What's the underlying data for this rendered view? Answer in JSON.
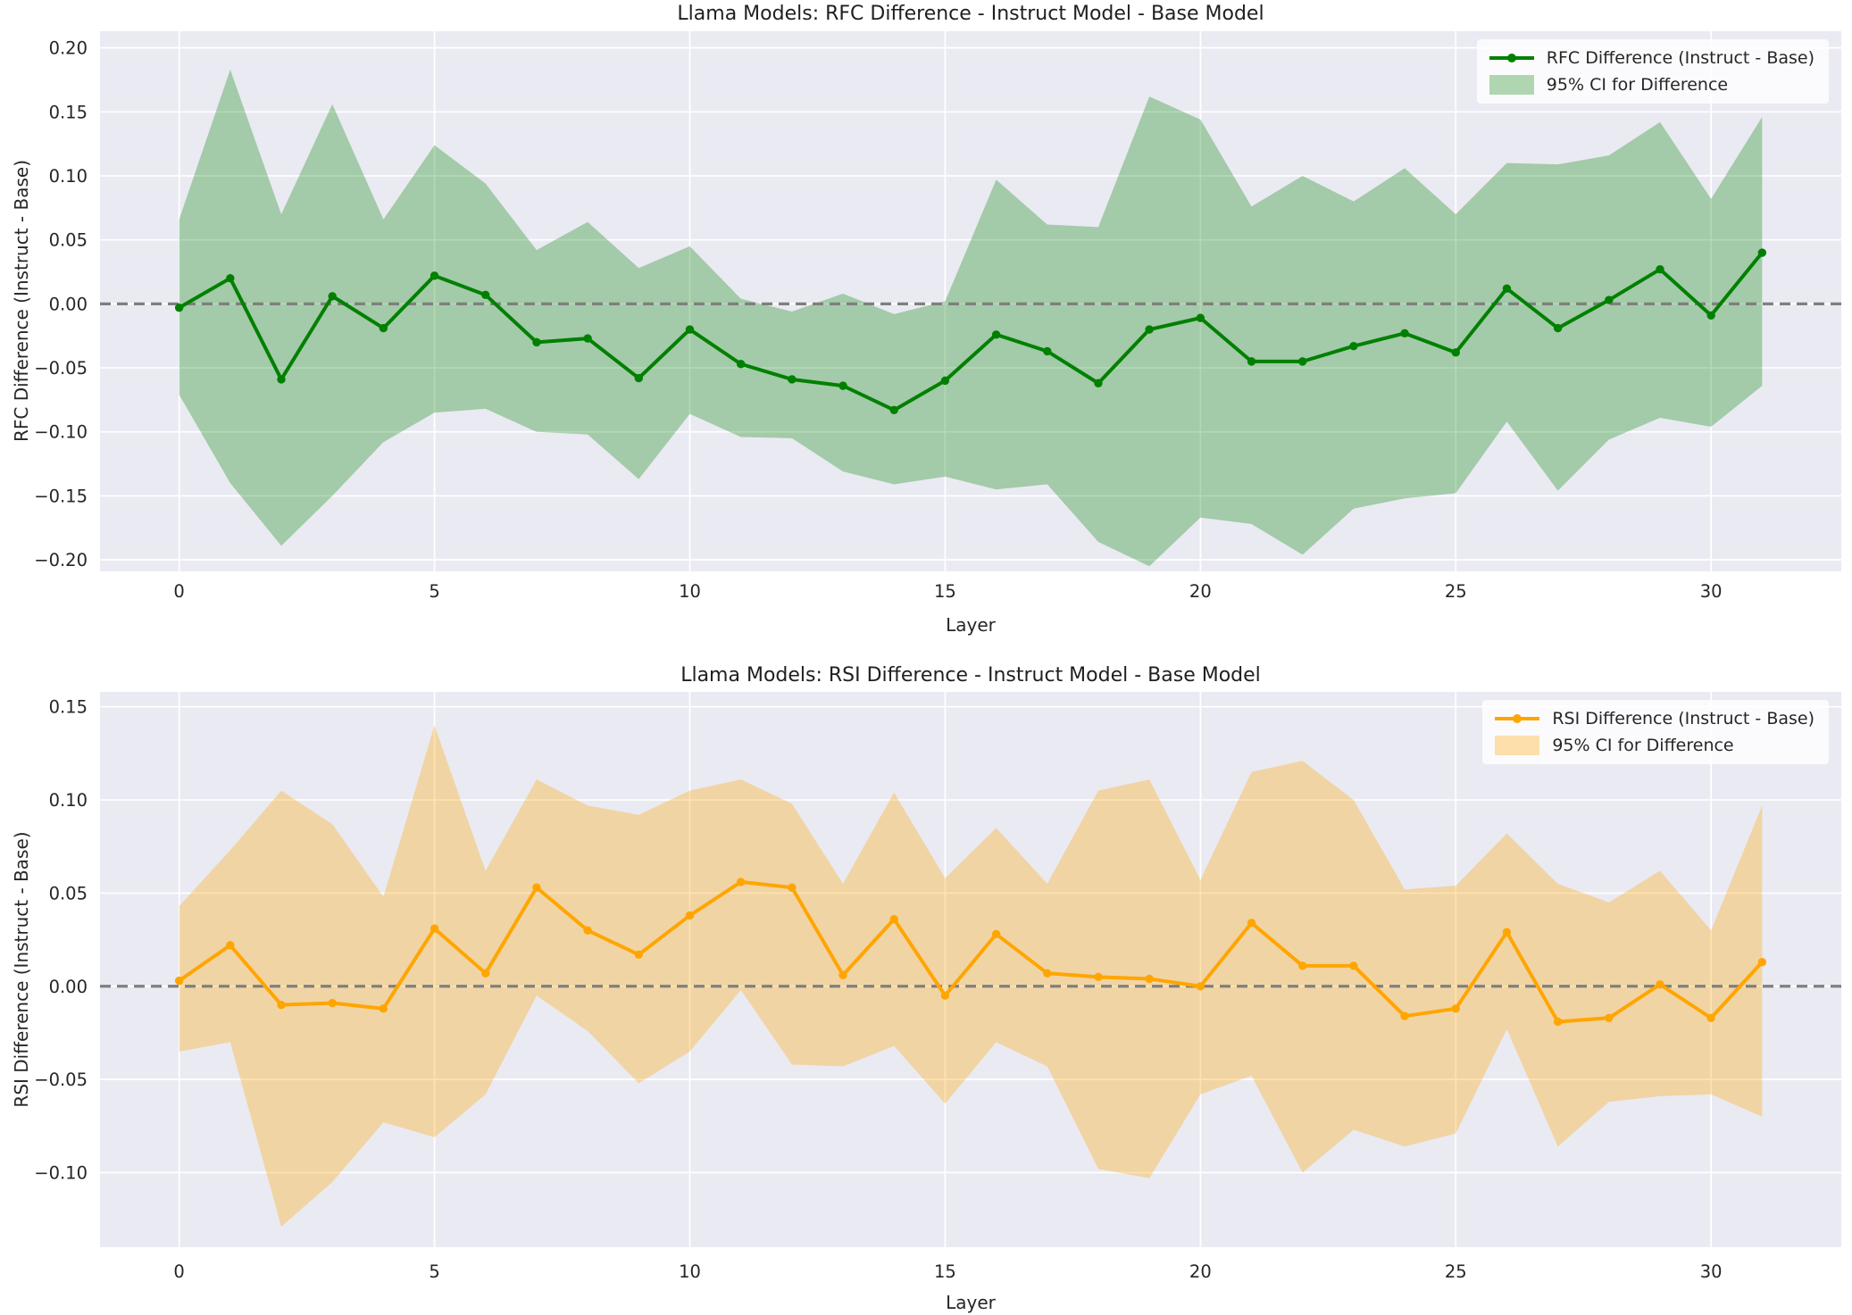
{
  "page_background": "#ffffff",
  "chart_data": [
    {
      "type": "line",
      "title": "Llama Models: RFC Difference - Instruct Model - Base Model",
      "xlabel": "Layer",
      "ylabel": "RFC Difference (Instruct - Base)",
      "legend": [
        "RFC Difference (Instruct - Base)",
        "95% CI for Difference"
      ],
      "legend_position": "upper right",
      "grid": true,
      "plot_bg": "#eaeaf2",
      "grid_color": "#ffffff",
      "line_color": "#008000",
      "band_color": "rgba(0,128,0,0.30)",
      "zero_line_color": "#7f7f7f",
      "xlim": [
        -1.55,
        32.55
      ],
      "ylim": [
        -0.209,
        0.213
      ],
      "xticks": [
        0,
        5,
        10,
        15,
        20,
        25,
        30
      ],
      "yticks": [
        0.2,
        0.15,
        0.1,
        0.05,
        0.0,
        -0.05,
        -0.1,
        -0.15,
        -0.2
      ],
      "x": [
        0,
        1,
        2,
        3,
        4,
        5,
        6,
        7,
        8,
        9,
        10,
        11,
        12,
        13,
        14,
        15,
        16,
        17,
        18,
        19,
        20,
        21,
        22,
        23,
        24,
        25,
        26,
        27,
        28,
        29,
        30,
        31
      ],
      "y": [
        -0.003,
        0.02,
        -0.059,
        0.006,
        -0.019,
        0.022,
        0.007,
        -0.03,
        -0.027,
        -0.058,
        -0.02,
        -0.047,
        -0.059,
        -0.064,
        -0.083,
        -0.06,
        -0.024,
        -0.037,
        -0.062,
        -0.02,
        -0.011,
        -0.045,
        -0.045,
        -0.033,
        -0.023,
        -0.038,
        0.012,
        -0.019,
        0.003,
        0.027,
        -0.009,
        0.04
      ],
      "ci_upper": [
        0.066,
        0.183,
        0.07,
        0.156,
        0.066,
        0.124,
        0.094,
        0.042,
        0.064,
        0.028,
        0.045,
        0.004,
        -0.006,
        0.008,
        -0.008,
        0.002,
        0.097,
        0.062,
        0.06,
        0.162,
        0.144,
        0.076,
        0.1,
        0.08,
        0.106,
        0.07,
        0.11,
        0.109,
        0.116,
        0.142,
        0.082,
        0.146
      ],
      "ci_lower": [
        -0.071,
        -0.14,
        -0.189,
        -0.15,
        -0.108,
        -0.085,
        -0.082,
        -0.1,
        -0.102,
        -0.137,
        -0.086,
        -0.104,
        -0.105,
        -0.131,
        -0.141,
        -0.135,
        -0.145,
        -0.141,
        -0.186,
        -0.205,
        -0.167,
        -0.172,
        -0.196,
        -0.16,
        -0.152,
        -0.148,
        -0.092,
        -0.146,
        -0.106,
        -0.089,
        -0.096,
        -0.064
      ]
    },
    {
      "type": "line",
      "title": "Llama Models: RSI Difference - Instruct Model - Base Model",
      "xlabel": "Layer",
      "ylabel": "RSI Difference (Instruct - Base)",
      "legend": [
        "RSI Difference (Instruct - Base)",
        "95% CI for Difference"
      ],
      "legend_position": "upper right",
      "grid": true,
      "plot_bg": "#eaeaf2",
      "grid_color": "#ffffff",
      "line_color": "#ffa500",
      "band_color": "rgba(255,165,0,0.32)",
      "zero_line_color": "#7f7f7f",
      "xlim": [
        -1.55,
        32.55
      ],
      "ylim": [
        -0.14,
        0.158
      ],
      "xticks": [
        0,
        5,
        10,
        15,
        20,
        25,
        30
      ],
      "yticks": [
        0.15,
        0.1,
        0.05,
        0.0,
        -0.05,
        -0.1
      ],
      "x": [
        0,
        1,
        2,
        3,
        4,
        5,
        6,
        7,
        8,
        9,
        10,
        11,
        12,
        13,
        14,
        15,
        16,
        17,
        18,
        19,
        20,
        21,
        22,
        23,
        24,
        25,
        26,
        27,
        28,
        29,
        30,
        31
      ],
      "y": [
        0.003,
        0.022,
        -0.01,
        -0.009,
        -0.012,
        0.031,
        0.007,
        0.053,
        0.03,
        0.017,
        0.038,
        0.056,
        0.053,
        0.006,
        0.036,
        -0.005,
        0.028,
        0.007,
        0.005,
        0.004,
        0.0,
        0.034,
        0.011,
        0.011,
        -0.016,
        -0.012,
        0.029,
        -0.019,
        -0.017,
        0.001,
        -0.017,
        0.013
      ],
      "ci_upper": [
        0.043,
        0.073,
        0.105,
        0.087,
        0.048,
        0.14,
        0.062,
        0.111,
        0.097,
        0.092,
        0.105,
        0.111,
        0.098,
        0.055,
        0.104,
        0.058,
        0.085,
        0.055,
        0.105,
        0.111,
        0.057,
        0.115,
        0.121,
        0.1,
        0.052,
        0.054,
        0.082,
        0.055,
        0.045,
        0.062,
        0.03,
        0.097
      ],
      "ci_lower": [
        -0.035,
        -0.03,
        -0.129,
        -0.105,
        -0.073,
        -0.081,
        -0.058,
        -0.005,
        -0.024,
        -0.052,
        -0.035,
        -0.002,
        -0.042,
        -0.043,
        -0.032,
        -0.063,
        -0.03,
        -0.043,
        -0.098,
        -0.103,
        -0.058,
        -0.048,
        -0.1,
        -0.077,
        -0.086,
        -0.079,
        -0.023,
        -0.086,
        -0.062,
        -0.059,
        -0.058,
        -0.07
      ]
    }
  ]
}
